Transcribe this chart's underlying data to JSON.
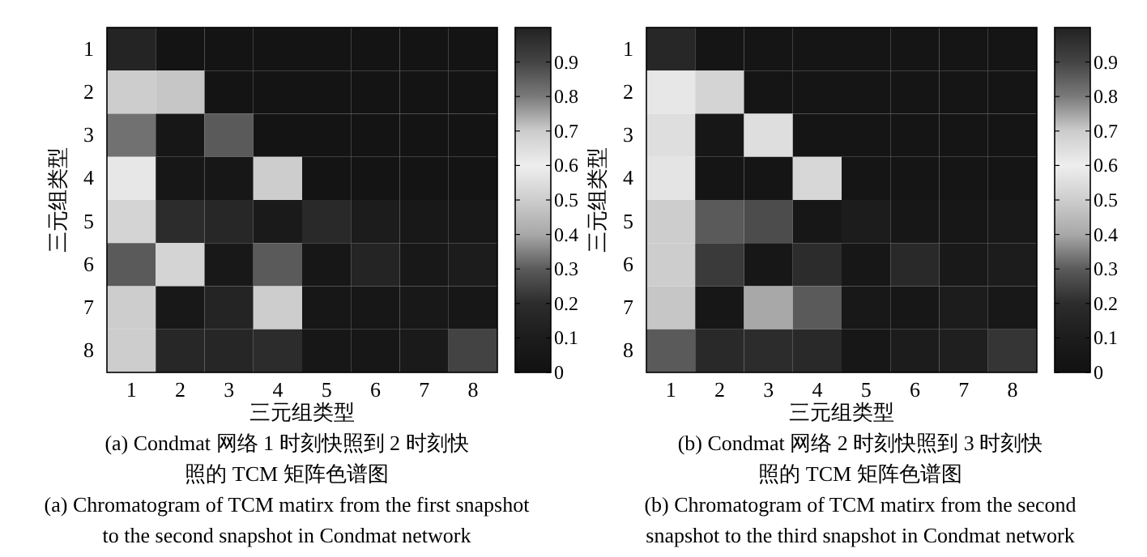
{
  "chart_data": [
    {
      "type": "heatmap",
      "title": "(a) Condmat 网络 1 时刻快照到 2 时刻快照的 TCM 矩阵色谱图",
      "subtitle": "(a) Chromatogram of TCM matirx from the first snapshot to the second snapshot in Condmat network",
      "xlabel": "三元组类型",
      "ylabel": "三元组类型",
      "categories": [
        "1",
        "2",
        "3",
        "4",
        "5",
        "6",
        "7",
        "8"
      ],
      "y_categories": [
        "1",
        "2",
        "3",
        "4",
        "5",
        "6",
        "7",
        "8"
      ],
      "cells": [
        [
          0.15,
          0.03,
          0.03,
          0.03,
          0.03,
          0.03,
          0.03,
          0.03
        ],
        [
          0.5,
          0.48,
          0.03,
          0.03,
          0.03,
          0.03,
          0.03,
          0.03
        ],
        [
          0.33,
          0.05,
          0.3,
          0.03,
          0.03,
          0.03,
          0.03,
          0.03
        ],
        [
          0.58,
          0.05,
          0.05,
          0.5,
          0.03,
          0.03,
          0.03,
          0.03
        ],
        [
          0.52,
          0.2,
          0.17,
          0.08,
          0.18,
          0.1,
          0.06,
          0.06
        ],
        [
          0.3,
          0.52,
          0.06,
          0.3,
          0.05,
          0.15,
          0.06,
          0.1
        ],
        [
          0.5,
          0.06,
          0.15,
          0.5,
          0.05,
          0.05,
          0.06,
          0.05
        ],
        [
          0.5,
          0.17,
          0.16,
          0.2,
          0.05,
          0.05,
          0.08,
          0.25
        ]
      ],
      "clim": [
        0,
        1
      ],
      "cticks": [
        0,
        0.1,
        0.2,
        0.3,
        0.4,
        0.5,
        0.6,
        0.7,
        0.8,
        0.9
      ]
    },
    {
      "type": "heatmap",
      "title": "(b) Condmat 网络 2 时刻快照到 3 时刻快照的 TCM 矩阵色谱图",
      "subtitle": "(b) Chromatogram of TCM matirx from the second snapshot to the third snapshot in Condmat network",
      "xlabel": "三元组类型",
      "ylabel": "三元组类型",
      "categories": [
        "1",
        "2",
        "3",
        "4",
        "5",
        "6",
        "7",
        "8"
      ],
      "y_categories": [
        "1",
        "2",
        "3",
        "4",
        "5",
        "6",
        "7",
        "8"
      ],
      "cells": [
        [
          0.17,
          0.04,
          0.04,
          0.04,
          0.04,
          0.04,
          0.04,
          0.04
        ],
        [
          0.58,
          0.52,
          0.04,
          0.04,
          0.04,
          0.04,
          0.04,
          0.04
        ],
        [
          0.55,
          0.05,
          0.55,
          0.04,
          0.04,
          0.04,
          0.04,
          0.04
        ],
        [
          0.57,
          0.04,
          0.04,
          0.53,
          0.04,
          0.04,
          0.04,
          0.04
        ],
        [
          0.5,
          0.3,
          0.27,
          0.05,
          0.1,
          0.05,
          0.05,
          0.07
        ],
        [
          0.5,
          0.23,
          0.05,
          0.2,
          0.05,
          0.18,
          0.07,
          0.1
        ],
        [
          0.48,
          0.05,
          0.4,
          0.3,
          0.06,
          0.05,
          0.1,
          0.06
        ],
        [
          0.3,
          0.18,
          0.2,
          0.18,
          0.05,
          0.1,
          0.12,
          0.22
        ]
      ],
      "clim": [
        0,
        1
      ],
      "cticks": [
        0,
        0.1,
        0.2,
        0.3,
        0.4,
        0.5,
        0.6,
        0.7,
        0.8,
        0.9
      ]
    }
  ]
}
